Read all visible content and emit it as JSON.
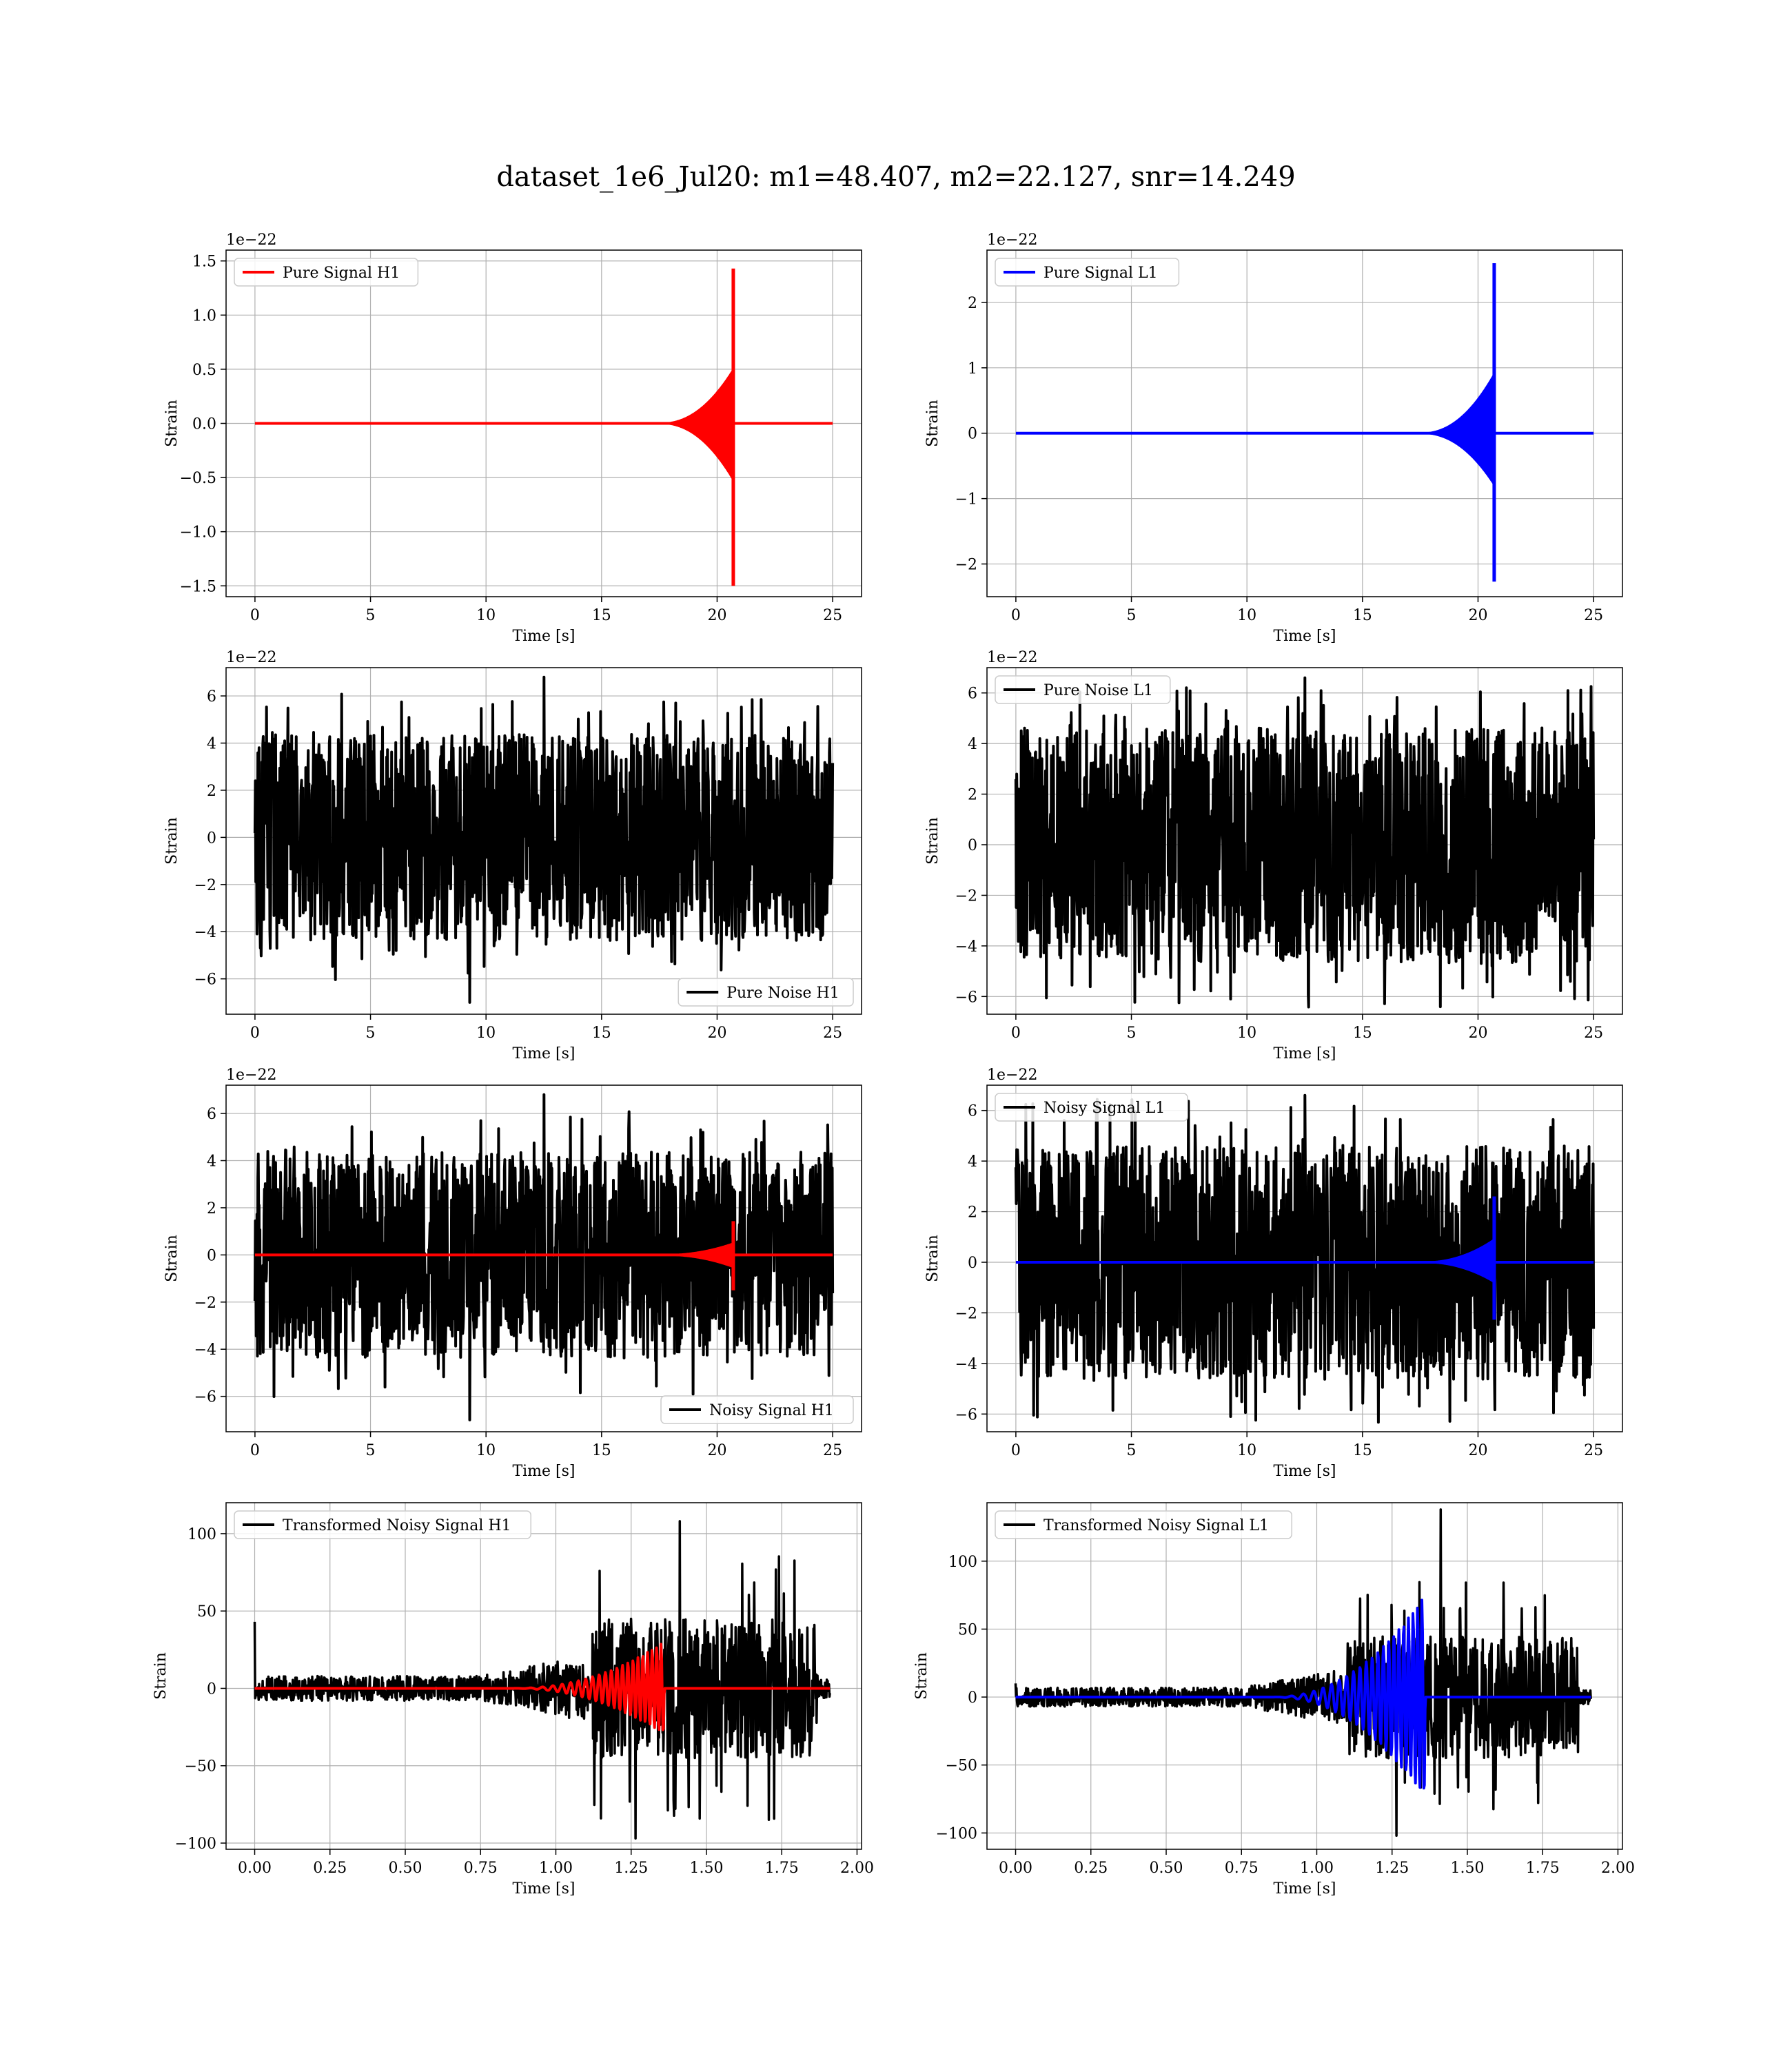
{
  "figure": {
    "suptitle": "dataset_1e6_Jul20: m1=48.407, m2=22.127, snr=14.249"
  },
  "chart_data": [
    {
      "type": "line",
      "name": "pure-signal-h1",
      "xlabel": "Time [s]",
      "ylabel": "Strain",
      "offset_text": "1e−22",
      "xlim": [
        -1.25,
        26.25
      ],
      "ylim": [
        -1.6,
        1.6
      ],
      "xticks": [
        0,
        5,
        10,
        15,
        20,
        25
      ],
      "xtick_labels": [
        "0",
        "5",
        "10",
        "15",
        "20",
        "25"
      ],
      "yticks": [
        -1.5,
        -1.0,
        -0.5,
        0.0,
        0.5,
        1.0,
        1.5
      ],
      "ytick_labels": [
        "−1.5",
        "−1.0",
        "−0.5",
        "0.0",
        "0.5",
        "1.0",
        "1.5"
      ],
      "legend": {
        "loc": "upper-left"
      },
      "grid": true,
      "series": [
        {
          "name": "Pure Signal H1",
          "kind": "chirp",
          "color": "#ff0000",
          "x_start": 0,
          "x_end": 25,
          "merger": 20.7,
          "peak_pos": 1.43,
          "peak_neg": -1.5
        }
      ]
    },
    {
      "type": "line",
      "name": "pure-signal-l1",
      "xlabel": "Time [s]",
      "ylabel": "Strain",
      "offset_text": "1e−22",
      "xlim": [
        -1.25,
        26.25
      ],
      "ylim": [
        -2.5,
        2.8
      ],
      "xticks": [
        0,
        5,
        10,
        15,
        20,
        25
      ],
      "xtick_labels": [
        "0",
        "5",
        "10",
        "15",
        "20",
        "25"
      ],
      "yticks": [
        -2,
        -1,
        0,
        1,
        2
      ],
      "ytick_labels": [
        "−2",
        "−1",
        "0",
        "1",
        "2"
      ],
      "legend": {
        "loc": "upper-left"
      },
      "grid": true,
      "series": [
        {
          "name": "Pure Signal L1",
          "kind": "chirp",
          "color": "#0000ff",
          "x_start": 0,
          "x_end": 25,
          "merger": 20.7,
          "peak_pos": 2.6,
          "peak_neg": -2.27
        }
      ]
    },
    {
      "type": "line",
      "name": "pure-noise-h1",
      "xlabel": "Time [s]",
      "ylabel": "Strain",
      "offset_text": "1e−22",
      "xlim": [
        -1.25,
        26.25
      ],
      "ylim": [
        -7.5,
        7.2
      ],
      "xticks": [
        0,
        5,
        10,
        15,
        20,
        25
      ],
      "xtick_labels": [
        "0",
        "5",
        "10",
        "15",
        "20",
        "25"
      ],
      "yticks": [
        -6,
        -4,
        -2,
        0,
        2,
        4,
        6
      ],
      "ytick_labels": [
        "−6",
        "−4",
        "−2",
        "0",
        "2",
        "4",
        "6"
      ],
      "legend": {
        "loc": "lower-right"
      },
      "grid": true,
      "series": [
        {
          "name": "Pure Noise H1",
          "kind": "noise",
          "color": "#000000",
          "x_start": 0,
          "x_end": 25,
          "band": 3.5,
          "max": 6.8,
          "min": -7.0
        }
      ]
    },
    {
      "type": "line",
      "name": "pure-noise-l1",
      "xlabel": "Time [s]",
      "ylabel": "Strain",
      "offset_text": "1e−22",
      "xlim": [
        -1.25,
        26.25
      ],
      "ylim": [
        -6.7,
        7.0
      ],
      "xticks": [
        0,
        5,
        10,
        15,
        20,
        25
      ],
      "xtick_labels": [
        "0",
        "5",
        "10",
        "15",
        "20",
        "25"
      ],
      "yticks": [
        -6,
        -4,
        -2,
        0,
        2,
        4,
        6
      ],
      "ytick_labels": [
        "−6",
        "−4",
        "−2",
        "0",
        "2",
        "4",
        "6"
      ],
      "legend": {
        "loc": "upper-left"
      },
      "grid": true,
      "series": [
        {
          "name": "Pure Noise L1",
          "kind": "noise",
          "color": "#000000",
          "x_start": 0,
          "x_end": 25,
          "band": 3.7,
          "max": 6.6,
          "min": -6.1
        }
      ]
    },
    {
      "type": "line",
      "name": "noisy-signal-h1",
      "xlabel": "Time [s]",
      "ylabel": "Strain",
      "offset_text": "1e−22",
      "xlim": [
        -1.25,
        26.25
      ],
      "ylim": [
        -7.5,
        7.2
      ],
      "xticks": [
        0,
        5,
        10,
        15,
        20,
        25
      ],
      "xtick_labels": [
        "0",
        "5",
        "10",
        "15",
        "20",
        "25"
      ],
      "yticks": [
        -6,
        -4,
        -2,
        0,
        2,
        4,
        6
      ],
      "ytick_labels": [
        "−6",
        "−4",
        "−2",
        "0",
        "2",
        "4",
        "6"
      ],
      "legend": {
        "loc": "lower-right"
      },
      "grid": true,
      "series": [
        {
          "name": "Noisy Signal H1",
          "kind": "noise",
          "color": "#000000",
          "x_start": 0,
          "x_end": 25,
          "band": 3.5,
          "max": 6.8,
          "min": -7.0
        },
        {
          "name": "",
          "kind": "chirp",
          "color": "#ff0000",
          "x_start": 0,
          "x_end": 25,
          "merger": 20.7,
          "peak_pos": 1.43,
          "peak_neg": -1.5
        }
      ]
    },
    {
      "type": "line",
      "name": "noisy-signal-l1",
      "xlabel": "Time [s]",
      "ylabel": "Strain",
      "offset_text": "1e−22",
      "xlim": [
        -1.25,
        26.25
      ],
      "ylim": [
        -6.7,
        7.0
      ],
      "xticks": [
        0,
        5,
        10,
        15,
        20,
        25
      ],
      "xtick_labels": [
        "0",
        "5",
        "10",
        "15",
        "20",
        "25"
      ],
      "yticks": [
        -6,
        -4,
        -2,
        0,
        2,
        4,
        6
      ],
      "ytick_labels": [
        "−6",
        "−4",
        "−2",
        "0",
        "2",
        "4",
        "6"
      ],
      "legend": {
        "loc": "upper-left"
      },
      "grid": true,
      "series": [
        {
          "name": "Noisy Signal L1",
          "kind": "noise",
          "color": "#000000",
          "x_start": 0,
          "x_end": 25,
          "band": 3.7,
          "max": 6.6,
          "min": -6.1
        },
        {
          "name": "",
          "kind": "chirp",
          "color": "#0000ff",
          "x_start": 0,
          "x_end": 25,
          "merger": 20.7,
          "peak_pos": 2.6,
          "peak_neg": -2.27
        }
      ]
    },
    {
      "type": "line",
      "name": "transformed-noisy-signal-h1",
      "xlabel": "Time [s]",
      "ylabel": "Strain",
      "offset_text": "",
      "xlim": [
        -0.095,
        2.015
      ],
      "ylim": [
        -104,
        120
      ],
      "xticks": [
        0.0,
        0.25,
        0.5,
        0.75,
        1.0,
        1.25,
        1.5,
        1.75,
        2.0
      ],
      "xtick_labels": [
        "0.00",
        "0.25",
        "0.50",
        "0.75",
        "1.00",
        "1.25",
        "1.50",
        "1.75",
        "2.00"
      ],
      "yticks": [
        -100,
        -50,
        0,
        50,
        100
      ],
      "ytick_labels": [
        "−100",
        "−50",
        "0",
        "50",
        "100"
      ],
      "legend": {
        "loc": "upper-left"
      },
      "grid": true,
      "series": [
        {
          "name": "Transformed Noisy Signal H1",
          "kind": "tnoise",
          "color": "#000000",
          "x_start": 0,
          "x_end": 1.91,
          "rise_start": 0.75,
          "jump": 1.12,
          "end_burst": 1.87,
          "base_band": 8,
          "high_band": 45,
          "max": 108,
          "min": -97,
          "spike_at_zero": 43
        },
        {
          "name": "",
          "kind": "tchirp",
          "color": "#ff0000",
          "x_start": 0,
          "x_end": 1.91,
          "merger": 1.36,
          "peak": 30
        }
      ]
    },
    {
      "type": "line",
      "name": "transformed-noisy-signal-l1",
      "xlabel": "Time [s]",
      "ylabel": "Strain",
      "offset_text": "",
      "xlim": [
        -0.095,
        2.015
      ],
      "ylim": [
        -112,
        143
      ],
      "xticks": [
        0.0,
        0.25,
        0.5,
        0.75,
        1.0,
        1.25,
        1.5,
        1.75,
        2.0
      ],
      "xtick_labels": [
        "0.00",
        "0.25",
        "0.50",
        "0.75",
        "1.00",
        "1.25",
        "1.50",
        "1.75",
        "2.00"
      ],
      "yticks": [
        -100,
        -50,
        0,
        50,
        100
      ],
      "ytick_labels": [
        "−100",
        "−50",
        "0",
        "50",
        "100"
      ],
      "legend": {
        "loc": "upper-left"
      },
      "grid": true,
      "series": [
        {
          "name": "Transformed Noisy Signal L1",
          "kind": "tnoise",
          "color": "#000000",
          "x_start": 0,
          "x_end": 1.91,
          "rise_start": 0.75,
          "jump": 1.1,
          "end_burst": 1.87,
          "base_band": 7,
          "high_band": 45,
          "max": 138,
          "min": -102,
          "spike_at_zero": 10
        },
        {
          "name": "",
          "kind": "tchirp",
          "color": "#0000ff",
          "x_start": 0,
          "x_end": 1.91,
          "merger": 1.36,
          "peak": 75
        }
      ]
    }
  ]
}
